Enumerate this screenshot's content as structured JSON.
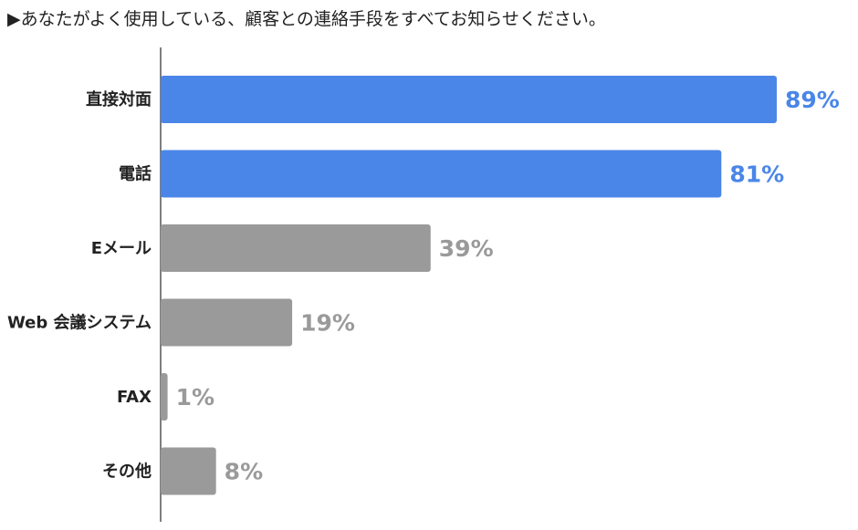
{
  "title": "▶あなたがよく使用している、顧客との連絡手段をすべてお知らせください。",
  "colors": {
    "highlight": "#4a86e8",
    "default": "#9a9a9a",
    "axis": "#555555"
  },
  "chart_data": {
    "type": "bar",
    "orientation": "horizontal",
    "categories": [
      "直接対面",
      "電話",
      "Eメール",
      "Web 会議システム",
      "FAX",
      "その他"
    ],
    "values": [
      89,
      81,
      39,
      19,
      1,
      8
    ],
    "value_labels": [
      "89%",
      "81%",
      "39%",
      "19%",
      "1%",
      "8%"
    ],
    "highlighted": [
      true,
      true,
      false,
      false,
      false,
      false
    ],
    "unit": "%",
    "xlim": [
      0,
      100
    ],
    "grid": false,
    "legend": "none"
  }
}
